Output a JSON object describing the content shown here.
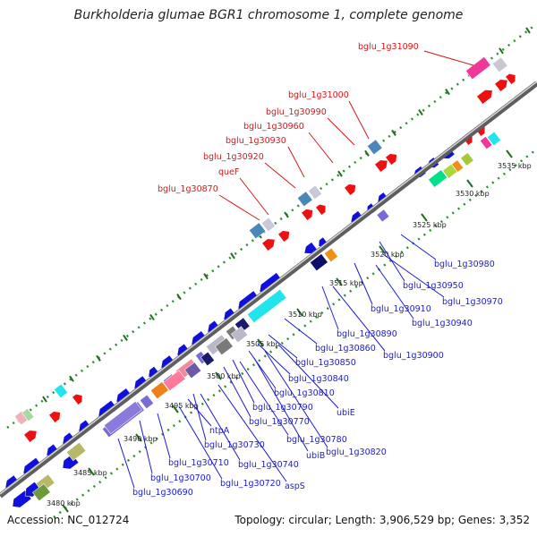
{
  "title": "Burkholderia glumae BGR1 chromosome 1, complete genome",
  "accession_label": "Accession: NC_012724",
  "topology_label": "Topology: circular; Length: 3,906,529 bp; Genes: 3,352",
  "ticks": [
    "3480 kbp",
    "3485 kbp",
    "3490 kbp",
    "3495 kbp",
    "3500 kbp",
    "3505 kbp",
    "3510 kbp",
    "3515 kbp",
    "3520 kbp",
    "3525 kbp",
    "3530 kbp",
    "3535 kbp"
  ],
  "labels_top": [
    "bglu_1g31090",
    "bglu_1g31000",
    "bglu_1g30990",
    "bglu_1g30960",
    "bglu_1g30930",
    "bglu_1g30920",
    "queF",
    "bglu_1g30870"
  ],
  "labels_bottom": [
    "bglu_1g30980",
    "bglu_1g30950",
    "bglu_1g30970",
    "bglu_1g30910",
    "bglu_1g30940",
    "bglu_1g30890",
    "bglu_1g30900",
    "bglu_1g30860",
    "bglu_1g30850",
    "bglu_1g30840",
    "bglu_1g30810",
    "bglu_1g30790",
    "ubiE",
    "bglu_1g30770",
    "bglu_1g30780",
    "bglu_1g30820",
    "bglu_1g30730",
    "ubiB",
    "ntpA",
    "bglu_1g30740",
    "bglu_1g30710",
    "bglu_1g30700",
    "bglu_1g30720",
    "aspS",
    "bglu_1g30690"
  ],
  "colors": {
    "backbone": "#8c8c8c",
    "dots": "#2e8b2e",
    "tick": "#1e6e1e",
    "label_top": "#d41818",
    "label_bottom": "#1a1ad6"
  }
}
